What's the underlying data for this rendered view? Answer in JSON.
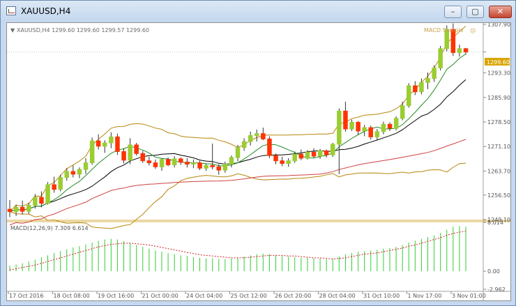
{
  "window": {
    "title": "XAUUSD,H4",
    "minimize_glyph": "–",
    "maximize_glyph": "▢",
    "close_glyph": "✕"
  },
  "chart": {
    "header": "XAUUSD,H4  1299.60 1299.60 1299.57 1299.60",
    "ea_name": "MACD Sample",
    "ea_face": "☹",
    "current_price": "1299.60",
    "price_ticks": [
      "1307.90",
      "1299.60",
      "1293.30",
      "1285.90",
      "1278.50",
      "1271.10",
      "1263.70",
      "1256.50",
      "1249.10"
    ],
    "macd_label": "MACD(12,26,9) 7.309 6.614",
    "macd_ticks": [
      "8.014",
      "0.00",
      "-2.962"
    ],
    "time_labels": [
      "17 Oct 2016",
      "18 Oct 08:00",
      "19 Oct 16:00",
      "21 Oct 00:00",
      "24 Oct 04:00",
      "25 Oct 12:00",
      "26 Oct 20:00",
      "28 Oct 04:00",
      "31 Oct 10:00",
      "1 Nov 17:00",
      "3 Nov 01:00"
    ]
  },
  "chart_data": {
    "type": "candlestick",
    "symbol": "XAUUSD",
    "timeframe": "H4",
    "ylim": [
      1249.1,
      1307.9
    ],
    "macd_ylim": [
      -2.962,
      8.014
    ],
    "colors": {
      "bull": "#9acd32",
      "bear": "#ff3300",
      "wick": "#333333",
      "fast_ma": "#228b22",
      "slow_ma": "#000000",
      "trend_ma": "#d04040",
      "bollinger": "#b8860b",
      "macd_hist": "#32cd32",
      "macd_signal": "#d02020"
    },
    "candles": [
      [
        1252.2,
        1255.0,
        1249.8,
        1251.5
      ],
      [
        1251.5,
        1253.6,
        1250.2,
        1252.8
      ],
      [
        1252.8,
        1254.8,
        1250.6,
        1251.6
      ],
      [
        1251.6,
        1254.2,
        1250.8,
        1253.4
      ],
      [
        1253.4,
        1256.8,
        1252.4,
        1255.8
      ],
      [
        1255.8,
        1257.6,
        1252.8,
        1254.0
      ],
      [
        1254.0,
        1260.4,
        1253.6,
        1259.6
      ],
      [
        1259.6,
        1262.0,
        1257.2,
        1258.2
      ],
      [
        1258.2,
        1262.6,
        1257.6,
        1261.8
      ],
      [
        1261.8,
        1264.6,
        1260.8,
        1263.6
      ],
      [
        1263.6,
        1265.4,
        1261.8,
        1262.8
      ],
      [
        1262.8,
        1264.8,
        1261.6,
        1264.2
      ],
      [
        1264.2,
        1267.6,
        1262.8,
        1266.2
      ],
      [
        1266.2,
        1273.8,
        1265.6,
        1272.8
      ],
      [
        1272.8,
        1274.8,
        1270.2,
        1271.2
      ],
      [
        1271.2,
        1273.0,
        1269.2,
        1272.2
      ],
      [
        1272.2,
        1275.4,
        1270.6,
        1274.0
      ],
      [
        1274.0,
        1275.0,
        1268.6,
        1269.6
      ],
      [
        1269.6,
        1270.6,
        1266.0,
        1267.0
      ],
      [
        1267.0,
        1273.6,
        1265.8,
        1271.6
      ],
      [
        1271.6,
        1272.2,
        1268.4,
        1269.0
      ],
      [
        1269.0,
        1269.8,
        1266.2,
        1266.8
      ],
      [
        1266.8,
        1268.0,
        1265.4,
        1266.2
      ],
      [
        1266.2,
        1267.2,
        1264.4,
        1265.0
      ],
      [
        1265.0,
        1267.6,
        1263.8,
        1267.2
      ],
      [
        1267.2,
        1267.8,
        1265.2,
        1265.6
      ],
      [
        1265.6,
        1268.2,
        1264.8,
        1267.4
      ],
      [
        1267.4,
        1267.8,
        1265.6,
        1266.4
      ],
      [
        1266.4,
        1267.6,
        1264.8,
        1265.8
      ],
      [
        1265.8,
        1267.2,
        1264.6,
        1266.2
      ],
      [
        1266.2,
        1266.8,
        1264.0,
        1264.6
      ],
      [
        1264.6,
        1266.0,
        1263.8,
        1265.4
      ],
      [
        1265.4,
        1272.0,
        1264.2,
        1265.0
      ],
      [
        1265.0,
        1265.8,
        1262.6,
        1264.0
      ],
      [
        1264.0,
        1266.6,
        1263.2,
        1265.8
      ],
      [
        1265.8,
        1268.4,
        1264.8,
        1267.8
      ],
      [
        1267.8,
        1271.6,
        1266.6,
        1270.8
      ],
      [
        1270.8,
        1273.6,
        1269.8,
        1272.6
      ],
      [
        1272.6,
        1275.6,
        1271.4,
        1274.4
      ],
      [
        1274.4,
        1276.2,
        1272.6,
        1275.0
      ],
      [
        1275.0,
        1276.8,
        1273.0,
        1273.4
      ],
      [
        1273.4,
        1274.2,
        1267.6,
        1268.4
      ],
      [
        1268.4,
        1269.0,
        1265.8,
        1266.8
      ],
      [
        1266.8,
        1268.0,
        1265.2,
        1266.0
      ],
      [
        1266.0,
        1267.6,
        1265.0,
        1266.8
      ],
      [
        1266.8,
        1269.6,
        1266.2,
        1268.8
      ],
      [
        1268.8,
        1270.2,
        1267.0,
        1267.6
      ],
      [
        1267.6,
        1270.0,
        1267.2,
        1269.4
      ],
      [
        1269.4,
        1270.6,
        1267.6,
        1268.2
      ],
      [
        1268.2,
        1270.4,
        1267.4,
        1269.8
      ],
      [
        1269.8,
        1270.2,
        1267.8,
        1268.6
      ],
      [
        1268.6,
        1272.2,
        1268.0,
        1271.8
      ],
      [
        1271.8,
        1282.6,
        1262.8,
        1281.8
      ],
      [
        1281.8,
        1284.6,
        1275.6,
        1276.4
      ],
      [
        1276.4,
        1279.2,
        1275.8,
        1278.4
      ],
      [
        1278.4,
        1278.8,
        1274.6,
        1275.8
      ],
      [
        1275.8,
        1277.6,
        1274.2,
        1276.8
      ],
      [
        1276.8,
        1277.4,
        1273.2,
        1274.0
      ],
      [
        1274.0,
        1276.4,
        1273.2,
        1275.6
      ],
      [
        1275.6,
        1278.6,
        1274.8,
        1277.8
      ],
      [
        1277.8,
        1278.4,
        1275.8,
        1276.6
      ],
      [
        1276.6,
        1280.2,
        1276.0,
        1279.6
      ],
      [
        1279.6,
        1284.6,
        1279.0,
        1283.4
      ],
      [
        1283.4,
        1290.2,
        1282.8,
        1289.4
      ],
      [
        1289.4,
        1290.8,
        1286.6,
        1287.6
      ],
      [
        1287.6,
        1291.6,
        1286.8,
        1290.4
      ],
      [
        1290.4,
        1293.4,
        1288.4,
        1291.6
      ],
      [
        1291.6,
        1295.6,
        1290.6,
        1294.8
      ],
      [
        1294.8,
        1301.4,
        1294.0,
        1300.6
      ],
      [
        1300.6,
        1307.6,
        1299.8,
        1306.4
      ],
      [
        1306.4,
        1308.2,
        1298.4,
        1299.4
      ],
      [
        1299.4,
        1301.8,
        1298.2,
        1300.6
      ],
      [
        1300.6,
        1300.8,
        1298.8,
        1299.6
      ]
    ],
    "macd_hist": [
      0.9,
      1.1,
      1.3,
      1.6,
      1.9,
      2.3,
      2.6,
      3.0,
      3.3,
      3.6,
      3.9,
      4.1,
      4.4,
      4.7,
      5.0,
      5.2,
      5.3,
      5.2,
      4.9,
      4.6,
      4.3,
      4.0,
      3.7,
      3.4,
      3.2,
      3.0,
      2.8,
      2.6,
      2.5,
      2.3,
      2.2,
      2.1,
      2.1,
      2.0,
      2.0,
      2.1,
      2.2,
      2.4,
      2.6,
      2.8,
      2.9,
      2.8,
      2.6,
      2.5,
      2.4,
      2.3,
      2.2,
      2.2,
      2.1,
      2.1,
      2.0,
      2.0,
      2.4,
      2.8,
      3.0,
      3.2,
      3.3,
      3.4,
      3.5,
      3.7,
      3.8,
      4.0,
      4.3,
      4.7,
      5.0,
      5.3,
      5.6,
      5.9,
      6.3,
      6.8,
      7.3,
      7.4,
      7.3
    ],
    "macd_signal": [
      0.2,
      0.4,
      0.6,
      0.8,
      1.0,
      1.3,
      1.6,
      1.9,
      2.2,
      2.5,
      2.8,
      3.1,
      3.4,
      3.7,
      4.0,
      4.2,
      4.4,
      4.5,
      4.6,
      4.6,
      4.5,
      4.4,
      4.3,
      4.1,
      3.9,
      3.7,
      3.5,
      3.3,
      3.1,
      2.9,
      2.7,
      2.6,
      2.5,
      2.4,
      2.3,
      2.2,
      2.2,
      2.2,
      2.3,
      2.4,
      2.5,
      2.6,
      2.6,
      2.6,
      2.5,
      2.5,
      2.4,
      2.3,
      2.2,
      2.2,
      2.1,
      2.0,
      2.1,
      2.2,
      2.4,
      2.6,
      2.8,
      2.9,
      3.0,
      3.2,
      3.4,
      3.6,
      3.8,
      4.1,
      4.3,
      4.6,
      4.9,
      5.2,
      5.5,
      5.9,
      6.2,
      6.4,
      6.6
    ]
  }
}
